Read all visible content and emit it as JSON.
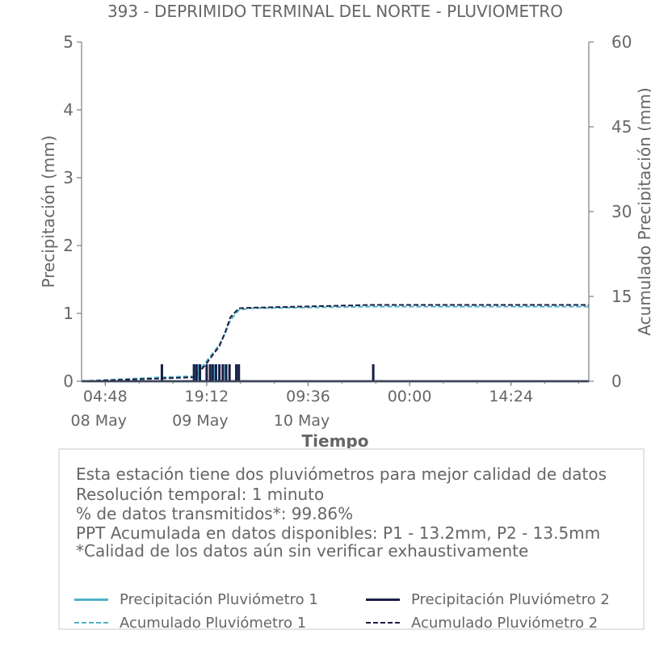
{
  "chart_data": {
    "type": "line",
    "title": "393 - DEPRIMIDO TERMINAL DEL NORTE - PLUVIOMETRO",
    "xlabel": "Tiempo",
    "ylabel_left": "Precipitación (mm)",
    "ylabel_right": "Acumulado Precipitación (mm)",
    "xlim_hours": [
      0,
      60.0
    ],
    "ylim_left": [
      0,
      5
    ],
    "ylim_right": [
      0,
      60
    ],
    "left_ticks": [
      0,
      1,
      2,
      3,
      4,
      5
    ],
    "right_ticks": [
      0,
      15,
      30,
      45,
      60
    ],
    "x_ticks": [
      {
        "hour": 2.8,
        "label": "04:48",
        "date": "08 May"
      },
      {
        "hour": 14.8,
        "label": "19:12",
        "date": "09 May"
      },
      {
        "hour": 26.8,
        "label": "09:36",
        "date": "10 May"
      },
      {
        "hour": 38.8,
        "label": "00:00",
        "date": ""
      },
      {
        "hour": 50.8,
        "label": "14:24",
        "date": ""
      }
    ],
    "grid": false,
    "legend": "bottom",
    "series": [
      {
        "name": "Precipitación Pluviómetro 1",
        "axis": "left",
        "style": "bars",
        "color": "#4eb3c8",
        "x": [
          9.5,
          13.3,
          13.9,
          15.7,
          17.0,
          18.6,
          34.5
        ],
        "values": [
          0.25,
          0.25,
          0.25,
          0.25,
          0.25,
          0.25,
          0.25
        ]
      },
      {
        "name": "Precipitación Pluviómetro 2",
        "axis": "right_none",
        "style": "bars",
        "color": "#1b1f45",
        "x": [
          9.5,
          13.3,
          13.6,
          14.0,
          14.8,
          15.2,
          15.5,
          15.9,
          16.3,
          16.7,
          17.1,
          17.5,
          18.3,
          18.6,
          34.5
        ],
        "values": [
          0.25,
          0.25,
          0.25,
          0.25,
          0.25,
          0.25,
          0.25,
          0.25,
          0.25,
          0.25,
          0.25,
          0.25,
          0.25,
          0.25,
          0.25
        ]
      },
      {
        "name": "Acumulado Pluviómetro 1",
        "axis": "right",
        "style": "dashed",
        "color": "#4eb3c8",
        "x": [
          0,
          9.5,
          13.3,
          13.9,
          14.6,
          15.1,
          15.7,
          16.3,
          17.0,
          17.6,
          18.6,
          20.0,
          34.5,
          60.0
        ],
        "values": [
          0,
          0.7,
          0.9,
          2.0,
          3.2,
          4.2,
          5.3,
          6.5,
          8.5,
          10.8,
          12.6,
          12.9,
          13.2,
          13.2
        ]
      },
      {
        "name": "Acumulado Pluviómetro 2",
        "axis": "right",
        "style": "dashed",
        "color": "#1b1f45",
        "x": [
          0,
          9.5,
          13.3,
          13.9,
          14.6,
          15.1,
          15.7,
          16.3,
          17.0,
          17.6,
          18.6,
          20.0,
          34.5,
          60.0
        ],
        "values": [
          0,
          0.5,
          0.7,
          1.6,
          2.8,
          3.8,
          5.0,
          6.2,
          8.7,
          11.3,
          12.9,
          13.0,
          13.5,
          13.5
        ]
      }
    ]
  },
  "info": {
    "line1": "Esta estación tiene dos pluviómetros para mejor calidad de datos",
    "line2": "Resolución temporal: 1 minuto",
    "line3": "% de datos transmitidos*: 99.86%",
    "line4": "PPT Acumulada en datos disponibles: P1 - 13.2mm, P2 - 13.5mm",
    "line5": "*Calidad de los datos aún sin verificar exhaustivamente"
  },
  "legend": {
    "p1": "Precipitación Pluviómetro 1",
    "p2": "Precipitación Pluviómetro 2",
    "a1": "Acumulado Pluviómetro 1",
    "a2": "Acumulado Pluviómetro 2"
  },
  "colors": {
    "light": "#4eb3c8",
    "dark": "#1b1f45",
    "axis": "#666666"
  }
}
